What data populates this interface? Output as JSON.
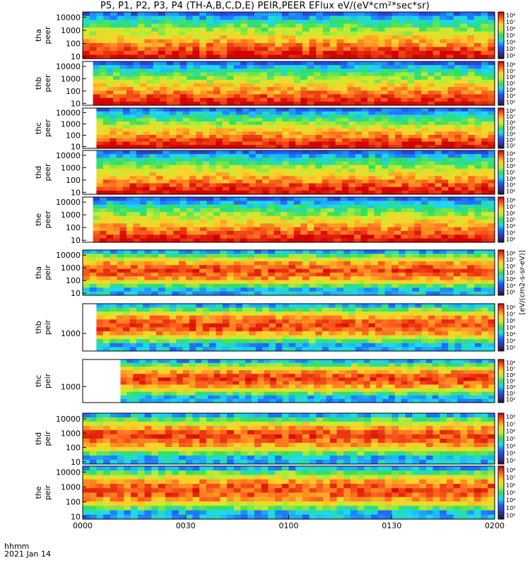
{
  "chart_data": {
    "type": "heatmap",
    "title": "P5, P1, P2, P3, P4 (TH-A,B,C,D,E) PEIR,PEER EFlux eV/(eV*cm²*sec*sr)",
    "x_label_lines": [
      "hhmm",
      "2021 Jan 14"
    ],
    "x_ticks": [
      "0000",
      "0030",
      "0100",
      "0130",
      "0200"
    ],
    "x_range_minutes": [
      0,
      120
    ],
    "colorbar_label": "[eV/(cm2-s-sr-eV)]",
    "colorbar_ticks": [
      "10²",
      "10³",
      "10⁴",
      "10⁵",
      "10⁶",
      "10⁷",
      "10⁸"
    ],
    "y_scale": "log",
    "panels": [
      {
        "probe": "tha",
        "species": "peer",
        "y_label_lines": [
          "tha",
          "peer"
        ],
        "y_ticks": [
          "10",
          "100",
          "1000",
          "10000"
        ],
        "data_start_minutes": 0,
        "y_range": [
          7,
          25000
        ]
      },
      {
        "probe": "thb",
        "species": "peer",
        "y_label_lines": [
          "thb",
          "peer"
        ],
        "y_ticks": [
          "10",
          "100",
          "1000",
          "10000"
        ],
        "data_start_minutes": 3,
        "y_range": [
          7,
          25000
        ]
      },
      {
        "probe": "thc",
        "species": "peer",
        "y_label_lines": [
          "thc",
          "peer"
        ],
        "y_ticks": [
          "10",
          "100",
          "1000",
          "10000"
        ],
        "data_start_minutes": 4,
        "y_range": [
          7,
          25000
        ]
      },
      {
        "probe": "thd",
        "species": "peer",
        "y_label_lines": [
          "thd",
          "peer"
        ],
        "y_ticks": [
          "10",
          "100",
          "1000",
          "10000"
        ],
        "data_start_minutes": 4,
        "y_range": [
          7,
          25000
        ]
      },
      {
        "probe": "the",
        "species": "peer",
        "y_label_lines": [
          "the",
          "peer"
        ],
        "y_ticks": [
          "10",
          "100",
          "1000",
          "10000"
        ],
        "data_start_minutes": 3,
        "y_range": [
          7,
          25000
        ]
      },
      {
        "probe": "tha",
        "species": "peir",
        "y_label_lines": [
          "tha",
          "peir"
        ],
        "y_ticks": [
          "10",
          "100",
          "1000",
          "10000"
        ],
        "data_start_minutes": 0,
        "y_range": [
          7,
          25000
        ]
      },
      {
        "probe": "thb",
        "species": "peir",
        "y_label_lines": [
          "thb",
          "peir"
        ],
        "y_ticks": [
          "1000"
        ],
        "data_start_minutes": 4,
        "y_range": [
          150,
          25000
        ]
      },
      {
        "probe": "thc",
        "species": "peir",
        "y_label_lines": [
          "thc",
          "peir"
        ],
        "y_ticks": [
          "1000"
        ],
        "data_start_minutes": 11,
        "y_range": [
          150,
          25000
        ]
      },
      {
        "probe": "thd",
        "species": "peir",
        "y_label_lines": [
          "thd",
          "peir"
        ],
        "y_ticks": [
          "10",
          "100",
          "1000",
          "10000"
        ],
        "data_start_minutes": 0,
        "y_range": [
          7,
          25000
        ]
      },
      {
        "probe": "the",
        "species": "peir",
        "y_label_lines": [
          "the",
          "peir"
        ],
        "y_ticks": [
          "10",
          "100",
          "1000",
          "10000"
        ],
        "data_start_minutes": 0,
        "y_range": [
          7,
          25000
        ]
      }
    ]
  }
}
